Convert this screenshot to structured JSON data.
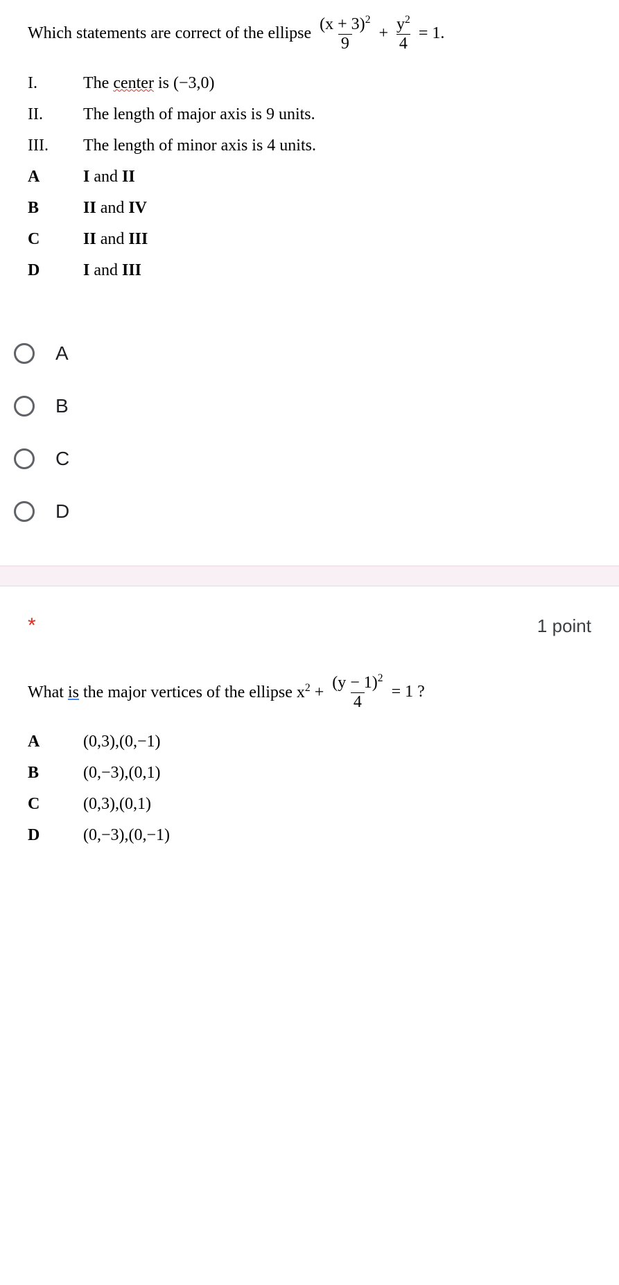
{
  "q1": {
    "prompt_prefix": "Which statements are correct of the ellipse ",
    "frac1_num": "(x + 3)",
    "frac1_exp": "2",
    "frac1_den": "9",
    "plus": "+",
    "frac2_num": "y",
    "frac2_exp": "2",
    "frac2_den": "4",
    "eq": "= 1.",
    "statements": [
      {
        "label": "I.",
        "text_pre": "The ",
        "text_u": "center",
        "text_post": " is (−3,0)",
        "bold": false
      },
      {
        "label": "II.",
        "text_pre": "The length of major axis is 9 units.",
        "text_u": "",
        "text_post": "",
        "bold": false
      },
      {
        "label": "III.",
        "text_pre": "The length of minor axis is 4 units.",
        "text_u": "",
        "text_post": "",
        "bold": false
      }
    ],
    "options": [
      {
        "label": "A",
        "text": "I and II",
        "bold_parts": [
          "I",
          "II"
        ]
      },
      {
        "label": "B",
        "text": "II and IV",
        "bold_parts": [
          "II",
          "IV"
        ]
      },
      {
        "label": "C",
        "text": "II and III",
        "bold_parts": [
          "II",
          "III"
        ]
      },
      {
        "label": "D",
        "text": "I and III",
        "bold_parts": [
          "I",
          "III"
        ]
      }
    ],
    "radio_labels": [
      "A",
      "B",
      "C",
      "D"
    ]
  },
  "q2": {
    "asterisk": "*",
    "points": "1 point",
    "prompt_pre": "What ",
    "prompt_u": "is",
    "prompt_mid": " the major vertices of the ellipse  x",
    "prompt_exp1": "2",
    "prompt_plus": " + ",
    "frac_num": "(y − 1)",
    "frac_exp": "2",
    "frac_den": "4",
    "prompt_end": " = 1 ?",
    "options": [
      {
        "label": "A",
        "text": "(0,3),(0,−1)"
      },
      {
        "label": "B",
        "text": "(0,−3),(0,1)"
      },
      {
        "label": "C",
        "text": "(0,3),(0,1)"
      },
      {
        "label": "D",
        "text": "(0,−3),(0,−1)"
      }
    ]
  },
  "colors": {
    "background": "#ffffff",
    "text": "#000000",
    "radio_border": "#5f6368",
    "radio_text": "#202124",
    "divider_bg": "#f8f0f4",
    "asterisk": "#d93025",
    "points_text": "#3c4043"
  }
}
